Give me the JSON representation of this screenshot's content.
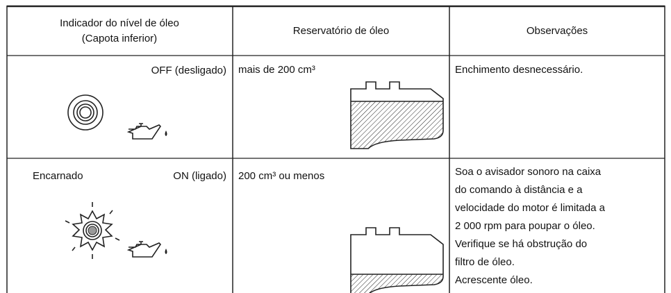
{
  "table": {
    "header": [
      [
        "Indicador do nível de óleo",
        "(Capota inferior)"
      ],
      [
        "Reservatório de óleo"
      ],
      [
        "Observações"
      ]
    ],
    "rows": [
      {
        "indicator_status": "OFF (desligado)",
        "level": "mais de 200 cm³",
        "notes": [
          "Enchimento desnecessário."
        ]
      },
      {
        "indicator_color": "Encarnado",
        "indicator_status": "ON (ligado)",
        "level": "200 cm³ ou menos",
        "notes": [
          "Soa o avisador sonoro na caixa",
          "do comando à distância e a",
          "velocidade do motor é limitada a",
          "2 000 rpm para poupar o óleo.",
          "Verifique se há obstrução do",
          "filtro de óleo.",
          "Acrescente óleo."
        ]
      }
    ]
  }
}
